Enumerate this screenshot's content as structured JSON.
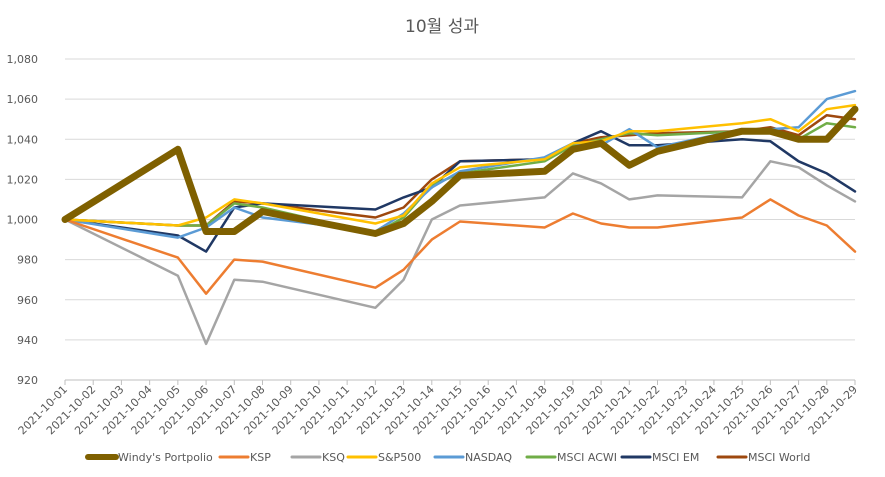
{
  "chart_data": {
    "type": "line",
    "title": "10월 성과",
    "xlabel": "",
    "ylabel": "",
    "ylim": [
      920,
      1080
    ],
    "yticks": [
      "920",
      "940",
      "960",
      "980",
      "1,000",
      "1,020",
      "1,040",
      "1,060",
      "1,080"
    ],
    "ytick_values": [
      920,
      940,
      960,
      980,
      1000,
      1020,
      1040,
      1060,
      1080
    ],
    "grid": true,
    "legend_position": "bottom",
    "x": [
      "2021-10-01",
      "2021-10-02",
      "2021-10-03",
      "2021-10-04",
      "2021-10-05",
      "2021-10-06",
      "2021-10-07",
      "2021-10-08",
      "2021-10-09",
      "2021-10-10",
      "2021-10-11",
      "2021-10-12",
      "2021-10-13",
      "2021-10-14",
      "2021-10-15",
      "2021-10-16",
      "2021-10-17",
      "2021-10-18",
      "2021-10-19",
      "2021-10-20",
      "2021-10-21",
      "2021-10-22",
      "2021-10-23",
      "2021-10-24",
      "2021-10-25",
      "2021-10-26",
      "2021-10-27",
      "2021-10-28",
      "2021-10-29"
    ],
    "series": [
      {
        "name": "MSCI World",
        "color": "#9E480E",
        "width": 2.5,
        "points": [
          [
            0,
            1000
          ],
          [
            4,
            997
          ],
          [
            5,
            997
          ],
          [
            6,
            1009
          ],
          [
            7,
            1008
          ],
          [
            11,
            1001
          ],
          [
            12,
            1006
          ],
          [
            13,
            1020
          ],
          [
            14,
            1029
          ],
          [
            17,
            1030
          ],
          [
            18,
            1038
          ],
          [
            19,
            1041
          ],
          [
            20,
            1042
          ],
          [
            21,
            1043
          ],
          [
            24,
            1044
          ],
          [
            25,
            1046
          ],
          [
            26,
            1042
          ],
          [
            27,
            1052
          ],
          [
            28,
            1050
          ]
        ]
      },
      {
        "name": "MSCI EM",
        "color": "#203864",
        "width": 2.5,
        "points": [
          [
            0,
            1000
          ],
          [
            4,
            992
          ],
          [
            5,
            984
          ],
          [
            6,
            1006
          ],
          [
            7,
            1008
          ],
          [
            11,
            1005
          ],
          [
            12,
            1011
          ],
          [
            13,
            1016
          ],
          [
            14,
            1029
          ],
          [
            17,
            1030
          ],
          [
            18,
            1038
          ],
          [
            19,
            1044
          ],
          [
            20,
            1037
          ],
          [
            21,
            1037
          ],
          [
            24,
            1040
          ],
          [
            25,
            1039
          ],
          [
            26,
            1029
          ],
          [
            27,
            1023
          ],
          [
            28,
            1014
          ]
        ]
      },
      {
        "name": "MSCI ACWI",
        "color": "#70AD47",
        "width": 2.5,
        "points": [
          [
            0,
            1000
          ],
          [
            4,
            997
          ],
          [
            5,
            997
          ],
          [
            6,
            1008
          ],
          [
            7,
            1006
          ],
          [
            11,
            993
          ],
          [
            12,
            1001
          ],
          [
            13,
            1017
          ],
          [
            14,
            1023
          ],
          [
            17,
            1029
          ],
          [
            18,
            1037
          ],
          [
            19,
            1040
          ],
          [
            20,
            1043
          ],
          [
            21,
            1042
          ],
          [
            24,
            1044
          ],
          [
            25,
            1045
          ],
          [
            26,
            1040
          ],
          [
            27,
            1048
          ],
          [
            28,
            1046
          ]
        ]
      },
      {
        "name": "NASDAQ",
        "color": "#5B9BD5",
        "width": 2.5,
        "points": [
          [
            0,
            1000
          ],
          [
            4,
            991
          ],
          [
            5,
            996
          ],
          [
            6,
            1006
          ],
          [
            7,
            1001
          ],
          [
            11,
            994
          ],
          [
            12,
            1003
          ],
          [
            13,
            1016
          ],
          [
            14,
            1024
          ],
          [
            17,
            1031
          ],
          [
            18,
            1038
          ],
          [
            19,
            1037
          ],
          [
            20,
            1045
          ],
          [
            21,
            1036
          ],
          [
            24,
            1045
          ],
          [
            25,
            1045
          ],
          [
            26,
            1046
          ],
          [
            27,
            1060
          ],
          [
            28,
            1064
          ]
        ]
      },
      {
        "name": "S&P500",
        "color": "#FFC000",
        "width": 2.5,
        "points": [
          [
            0,
            1000
          ],
          [
            4,
            997
          ],
          [
            5,
            1001
          ],
          [
            6,
            1010
          ],
          [
            7,
            1008
          ],
          [
            11,
            998
          ],
          [
            12,
            1002
          ],
          [
            13,
            1018
          ],
          [
            14,
            1026
          ],
          [
            17,
            1030
          ],
          [
            18,
            1038
          ],
          [
            19,
            1039
          ],
          [
            20,
            1044
          ],
          [
            21,
            1044
          ],
          [
            24,
            1048
          ],
          [
            25,
            1050
          ],
          [
            26,
            1044
          ],
          [
            27,
            1055
          ],
          [
            28,
            1057
          ]
        ]
      },
      {
        "name": "KSQ",
        "color": "#A5A5A5",
        "width": 2.5,
        "points": [
          [
            0,
            1000
          ],
          [
            4,
            972
          ],
          [
            5,
            938
          ],
          [
            6,
            970
          ],
          [
            7,
            969
          ],
          [
            11,
            956
          ],
          [
            12,
            970
          ],
          [
            13,
            1000
          ],
          [
            14,
            1007
          ],
          [
            17,
            1011
          ],
          [
            18,
            1023
          ],
          [
            19,
            1018
          ],
          [
            20,
            1010
          ],
          [
            21,
            1012
          ],
          [
            24,
            1011
          ],
          [
            25,
            1029
          ],
          [
            26,
            1026
          ],
          [
            27,
            1017
          ],
          [
            28,
            1009
          ]
        ]
      },
      {
        "name": "KSP",
        "color": "#ED7D31",
        "width": 2.5,
        "points": [
          [
            0,
            1000
          ],
          [
            4,
            981
          ],
          [
            5,
            963
          ],
          [
            6,
            980
          ],
          [
            7,
            979
          ],
          [
            11,
            966
          ],
          [
            12,
            975
          ],
          [
            13,
            990
          ],
          [
            14,
            999
          ],
          [
            17,
            996
          ],
          [
            18,
            1003
          ],
          [
            19,
            998
          ],
          [
            20,
            996
          ],
          [
            21,
            996
          ],
          [
            24,
            1001
          ],
          [
            25,
            1010
          ],
          [
            26,
            1002
          ],
          [
            27,
            997
          ],
          [
            28,
            984
          ]
        ]
      },
      {
        "name": "Windy's Portpolio",
        "color": "#7F6000",
        "width": 7,
        "points": [
          [
            0,
            1000
          ],
          [
            4,
            1035
          ],
          [
            5,
            994
          ],
          [
            6,
            994
          ],
          [
            7,
            1004
          ],
          [
            11,
            993
          ],
          [
            12,
            998
          ],
          [
            13,
            1009
          ],
          [
            14,
            1022
          ],
          [
            17,
            1024
          ],
          [
            18,
            1035
          ],
          [
            19,
            1038
          ],
          [
            20,
            1027
          ],
          [
            21,
            1034
          ],
          [
            24,
            1044
          ],
          [
            25,
            1044
          ],
          [
            26,
            1040
          ],
          [
            27,
            1040
          ],
          [
            28,
            1055
          ]
        ]
      }
    ],
    "legend": [
      "Windy's Portpolio",
      "KSP",
      "KSQ",
      "S&P500",
      "NASDAQ",
      "MSCI ACWI",
      "MSCI EM",
      "MSCI World"
    ]
  }
}
